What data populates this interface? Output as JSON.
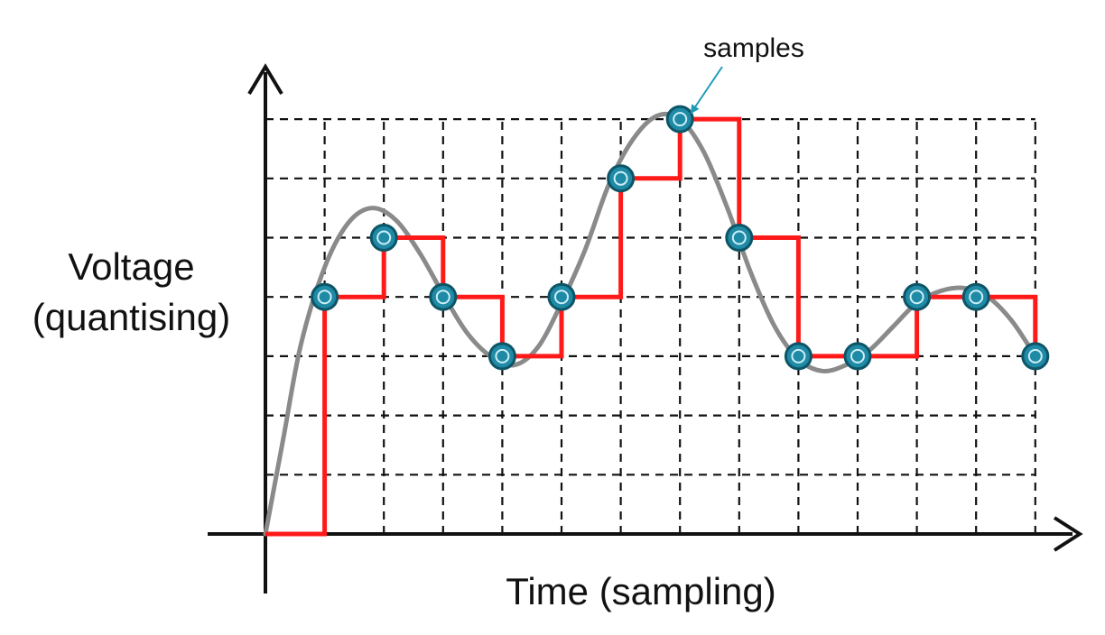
{
  "labels": {
    "ylabel_line1": "Voltage",
    "ylabel_line2": "(quantising)",
    "xlabel": "Time (sampling)",
    "samples": "samples"
  },
  "colors": {
    "axis": "#111111",
    "grid": "#111111",
    "signal": "#8a8a8a",
    "quantised": "#ff1a1a",
    "sample_fill": "#1f8aa6",
    "sample_ring": "#0d5566",
    "annotation_arrow": "#1f9bb8"
  },
  "chart_data": {
    "type": "line",
    "xlabel": "Time (sampling)",
    "ylabel": "Voltage (quantising)",
    "grid": true,
    "xlim": [
      0,
      13
    ],
    "ylim": [
      0,
      7
    ],
    "series": [
      {
        "name": "samples",
        "x": [
          1,
          2,
          3,
          4,
          5,
          6,
          7,
          8,
          9,
          10,
          11,
          12,
          13
        ],
        "y": [
          4,
          5,
          4,
          3,
          4,
          6,
          7,
          5,
          3,
          3,
          4,
          4,
          3
        ]
      }
    ],
    "signal_curve": {
      "x": [
        0,
        0.3,
        0.6,
        1,
        1.4,
        1.8,
        2.2,
        2.6,
        3,
        3.4,
        3.8,
        4.2,
        4.6,
        5,
        5.4,
        5.8,
        6.2,
        6.6,
        7,
        7.4,
        7.8,
        8.2,
        8.6,
        9,
        9.4,
        9.8,
        10.2,
        10.6,
        11,
        11.4,
        11.8,
        12.2,
        12.6,
        13
      ],
      "y": [
        0,
        1.6,
        3.2,
        4.5,
        5.25,
        5.5,
        5.3,
        4.75,
        4.05,
        3.4,
        3.0,
        2.85,
        3.15,
        3.9,
        4.8,
        5.9,
        6.65,
        7.05,
        7.0,
        6.45,
        5.5,
        4.4,
        3.5,
        2.95,
        2.75,
        2.85,
        3.1,
        3.5,
        3.9,
        4.1,
        4.15,
        4.0,
        3.6,
        3.0
      ]
    }
  }
}
